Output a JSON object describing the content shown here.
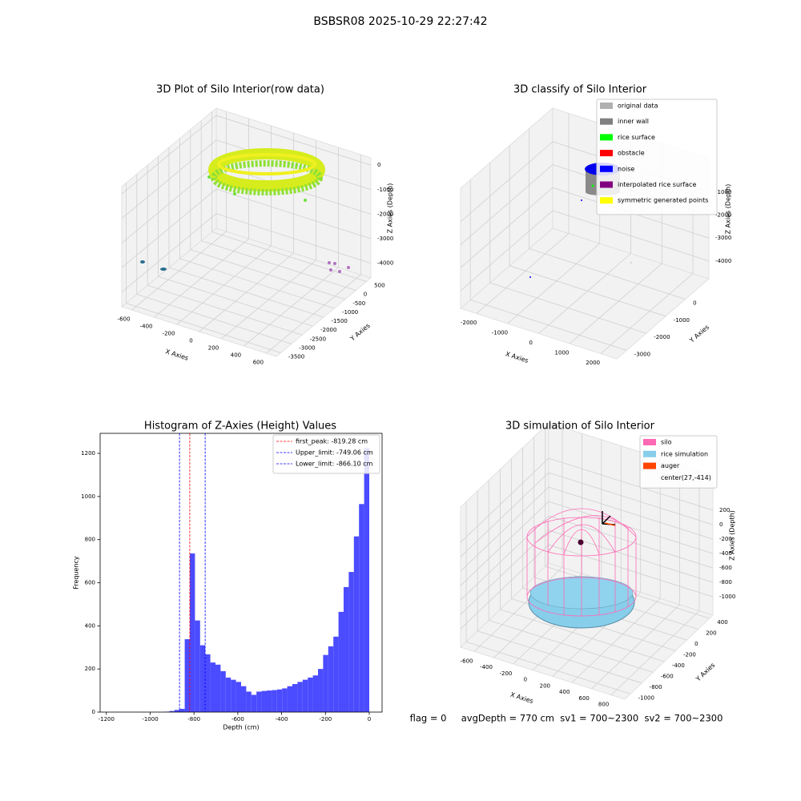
{
  "title": "BSBSR08 2025-10-29 22:27:42",
  "footer": "flag = 0     avgDepth = 770 cm  sv1 = 700~2300  sv2 = 700~2300",
  "chart_data": [
    {
      "type": "scatter3d",
      "title": "3D Plot of Silo Interior(row data)",
      "xlabel": "X Axies",
      "ylabel": "Y Axies",
      "zlabel": "Z Axies (Depth)",
      "xlim": [
        -690,
        690
      ],
      "ylim": [
        -3700,
        700
      ],
      "zlim": [
        -4600,
        300
      ],
      "xticks": [
        -600,
        -400,
        -200,
        0,
        200,
        400,
        600
      ],
      "yticks": [
        -3500,
        -3000,
        -2500,
        -2000,
        -1500,
        -1000,
        -500,
        0,
        500
      ],
      "zticks": [
        -4000,
        -3000,
        -2000,
        -1000,
        0
      ]
    },
    {
      "type": "scatter3d",
      "title": "3D classify of Silo Interior",
      "xlabel": "X Axies",
      "ylabel": "Y Axies",
      "zlabel": "Z Axies (Depth)",
      "xlim": [
        -2515,
        2515
      ],
      "ylim": [
        -3500,
        1200
      ],
      "zlim": [
        -4770,
        460
      ],
      "xticks": [
        -2000,
        -1000,
        0,
        1000,
        2000
      ],
      "yticks": [
        -3000,
        -2000,
        -1000,
        0
      ],
      "zticks": [
        -4000,
        -3000,
        -2000,
        -1000
      ],
      "legend": [
        {
          "name": "original data",
          "color": "#b0b0b0"
        },
        {
          "name": "inner wall",
          "color": "#808080"
        },
        {
          "name": "rice surface",
          "color": "#00ff00"
        },
        {
          "name": "obstacle",
          "color": "#ff0000"
        },
        {
          "name": "noise",
          "color": "#0000ff"
        },
        {
          "name": "interpolated rice surface",
          "color": "#800080"
        },
        {
          "name": "symmetric generated points",
          "color": "#ffff00"
        }
      ]
    },
    {
      "type": "histogram",
      "title": "Histogram of Z-Axies (Height) Values",
      "xlabel": "Depth (cm)",
      "ylabel": "Frequency",
      "color": "#4b4bff",
      "bins": [
        -1170,
        -1146.6,
        -1123.2,
        -1099.8,
        -1076.4,
        -1053,
        -1029.6,
        -1006.2,
        -982.8,
        -959.4,
        -936,
        -912.6,
        -889.2,
        -865.8,
        -842.4,
        -819,
        -795.6,
        -772.2,
        -748.8,
        -725.4,
        -702,
        -678.6,
        -655.2,
        -631.8,
        -608.4,
        -585,
        -561.6,
        -538.2,
        -514.8,
        -491.4,
        -468,
        -444.6,
        -421.2,
        -397.8,
        -374.4,
        -351,
        -327.6,
        -304.2,
        -280.8,
        -257.4,
        -234,
        -210.6,
        -187.2,
        -163.8,
        -140.4,
        -117,
        -93.6,
        -70.2,
        -46.8,
        -23.4,
        0
      ],
      "values": [
        0,
        0,
        0,
        0,
        0,
        0,
        0,
        0,
        0,
        0,
        2,
        5,
        10,
        15,
        338,
        736,
        425,
        310,
        268,
        230,
        220,
        190,
        160,
        150,
        140,
        120,
        95,
        80,
        95,
        98,
        100,
        102,
        105,
        110,
        120,
        130,
        140,
        150,
        160,
        170,
        200,
        265,
        305,
        350,
        465,
        580,
        650,
        815,
        965,
        1225
      ],
      "xlim": [
        -1228.5,
        58.5
      ],
      "ylim": [
        0,
        1293
      ],
      "xticks": [
        -1200,
        -1000,
        -800,
        -600,
        -400,
        -200,
        0
      ],
      "yticks": [
        0,
        200,
        400,
        600,
        800,
        1000,
        1200
      ],
      "vlines": [
        {
          "name": "first_peak: -819.28 cm",
          "value": -819.28,
          "color": "#ff0000"
        },
        {
          "name": "Upper_limit: -749.06 cm",
          "value": -749.06,
          "color": "#0000ff"
        },
        {
          "name": "Lower_limit: -866.10 cm",
          "value": -866.1,
          "color": "#0000ff"
        }
      ]
    },
    {
      "type": "scatter3d",
      "title": "3D simulation of Silo Interior",
      "xlabel": "X Axies",
      "ylabel": "Y Axies",
      "zlabel": "Z Axies (Depth)",
      "xlim": [
        -739,
        939
      ],
      "ylim": [
        -1100,
        460
      ],
      "zlim": [
        -1255,
        690
      ],
      "xticks": [
        -600,
        -400,
        -200,
        0,
        200,
        400,
        600,
        800
      ],
      "yticks": [
        -1000,
        -800,
        -600,
        -400,
        -200,
        0,
        200,
        400
      ],
      "zticks": [
        -1000,
        -800,
        -600,
        -400,
        -200,
        0,
        200
      ],
      "legend": [
        {
          "name": "silo",
          "color": "#ff69b4"
        },
        {
          "name": "rice simulation",
          "color": "#87ceeb"
        },
        {
          "name": "auger",
          "color": "#ff4500"
        },
        {
          "name": "center(27,-414)"
        }
      ]
    }
  ]
}
